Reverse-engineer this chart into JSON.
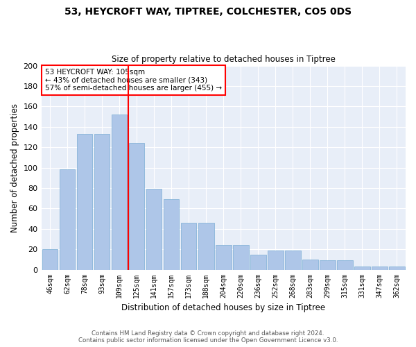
{
  "title1": "53, HEYCROFT WAY, TIPTREE, COLCHESTER, CO5 0DS",
  "title2": "Size of property relative to detached houses in Tiptree",
  "xlabel": "Distribution of detached houses by size in Tiptree",
  "ylabel": "Number of detached properties",
  "categories": [
    "46sqm",
    "62sqm",
    "78sqm",
    "93sqm",
    "109sqm",
    "125sqm",
    "141sqm",
    "157sqm",
    "173sqm",
    "188sqm",
    "204sqm",
    "220sqm",
    "236sqm",
    "252sqm",
    "268sqm",
    "283sqm",
    "299sqm",
    "315sqm",
    "331sqm",
    "347sqm",
    "362sqm"
  ],
  "bar_values": [
    20,
    98,
    133,
    133,
    152,
    124,
    79,
    69,
    46,
    46,
    24,
    24,
    15,
    19,
    19,
    10,
    9,
    9,
    3,
    3,
    3
  ],
  "bar_color": "#aec6e8",
  "bar_edgecolor": "#7aadd4",
  "vline_x": 4.5,
  "vline_color": "red",
  "annotation_text": "53 HEYCROFT WAY: 105sqm\n← 43% of detached houses are smaller (343)\n57% of semi-detached houses are larger (455) →",
  "ylim": [
    0,
    200
  ],
  "yticks": [
    0,
    20,
    40,
    60,
    80,
    100,
    120,
    140,
    160,
    180,
    200
  ],
  "background_color": "#e8eef8",
  "grid_color": "white",
  "footer": "Contains HM Land Registry data © Crown copyright and database right 2024.\nContains public sector information licensed under the Open Government Licence v3.0."
}
